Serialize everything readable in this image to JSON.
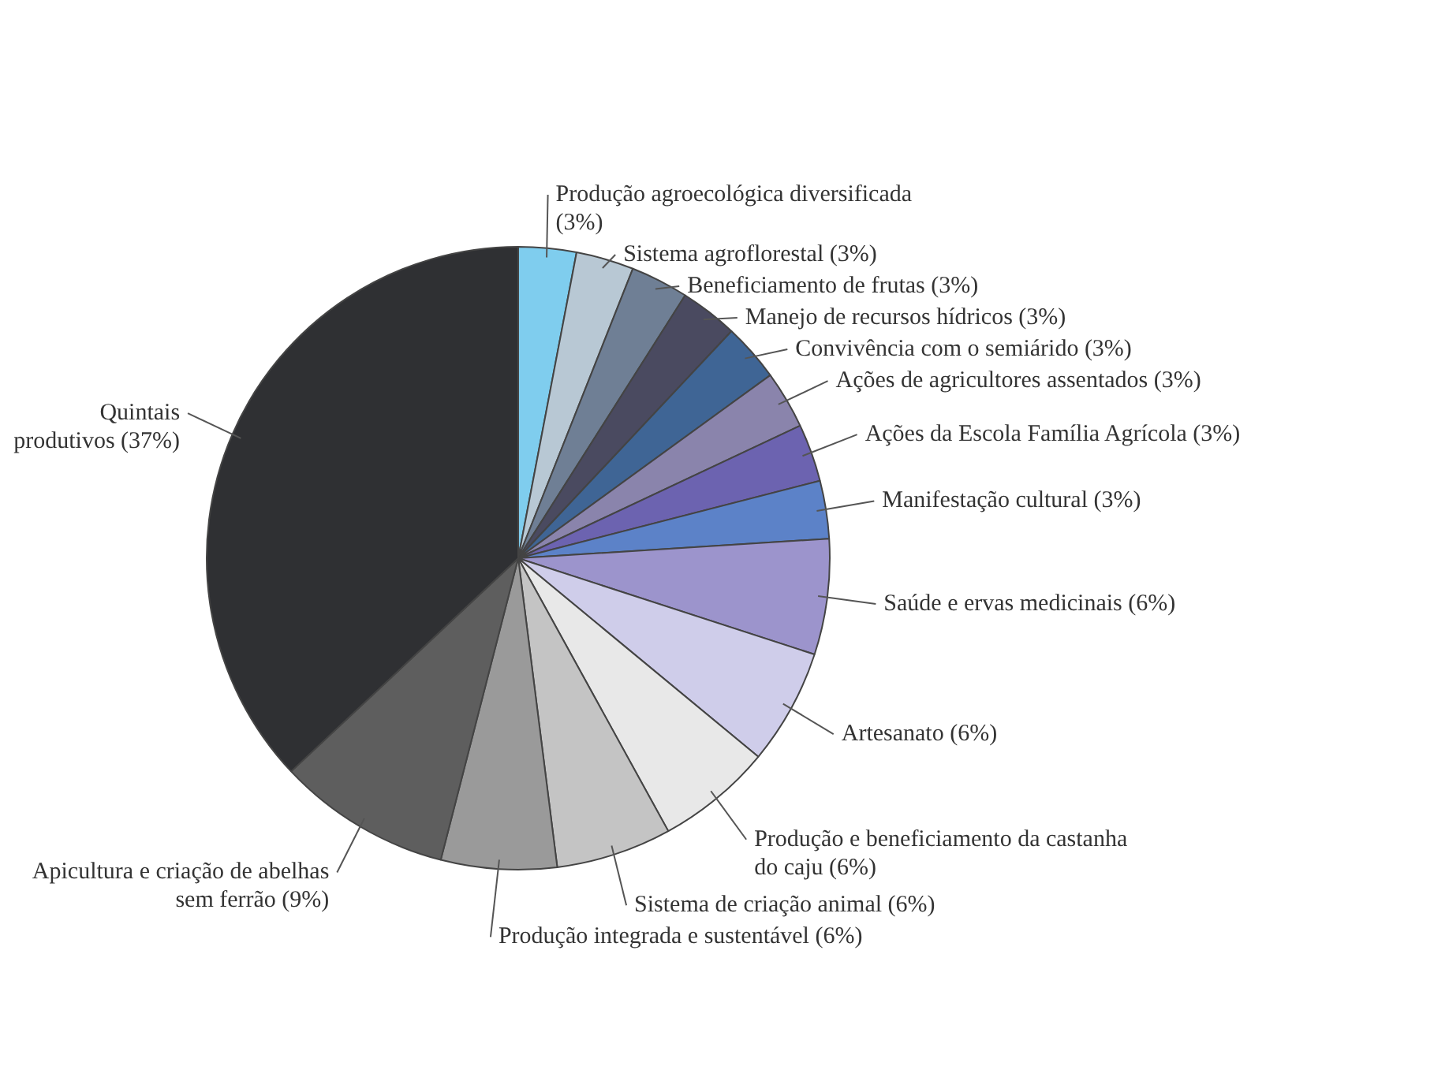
{
  "chart_data": {
    "type": "pie",
    "categories": [
      "Produção agroecológica diversificada",
      "Sistema agroflorestal",
      "Beneficiamento de frutas",
      "Manejo de recursos hídricos",
      "Convivência com o semiárido",
      "Ações de agricultores assentados",
      "Ações da Escola Família Agrícola",
      "Manifestação cultural",
      "Saúde e ervas medicinais",
      "Artesanato",
      "Produção e beneficiamento da castanha do caju",
      "Sistema de criação animal",
      "Produção integrada e sustentável",
      "Apicultura e criação de abelhas sem ferrão",
      "Quintais produtivos"
    ],
    "values": [
      3,
      3,
      3,
      3,
      3,
      3,
      3,
      3,
      6,
      6,
      6,
      6,
      6,
      9,
      37
    ],
    "value_labels": [
      "(3%)",
      "(3%)",
      "(3%)",
      "(3%)",
      "(3%)",
      "(3%)",
      "(3%)",
      "(3%)",
      "(6%)",
      "(6%)",
      "(6%)",
      "(6%)",
      "(6%)",
      "(9%)",
      "(37%)"
    ],
    "colors": [
      "#7fcdee",
      "#b8c8d4",
      "#6f7f95",
      "#4a4a60",
      "#3f6595",
      "#8a84ac",
      "#6c63b0",
      "#5c82c8",
      "#9c94cc",
      "#cfcdea",
      "#e8e8e8",
      "#c4c4c4",
      "#9a9a9a",
      "#5e5e5e",
      "#2f3033"
    ],
    "legend": false
  }
}
